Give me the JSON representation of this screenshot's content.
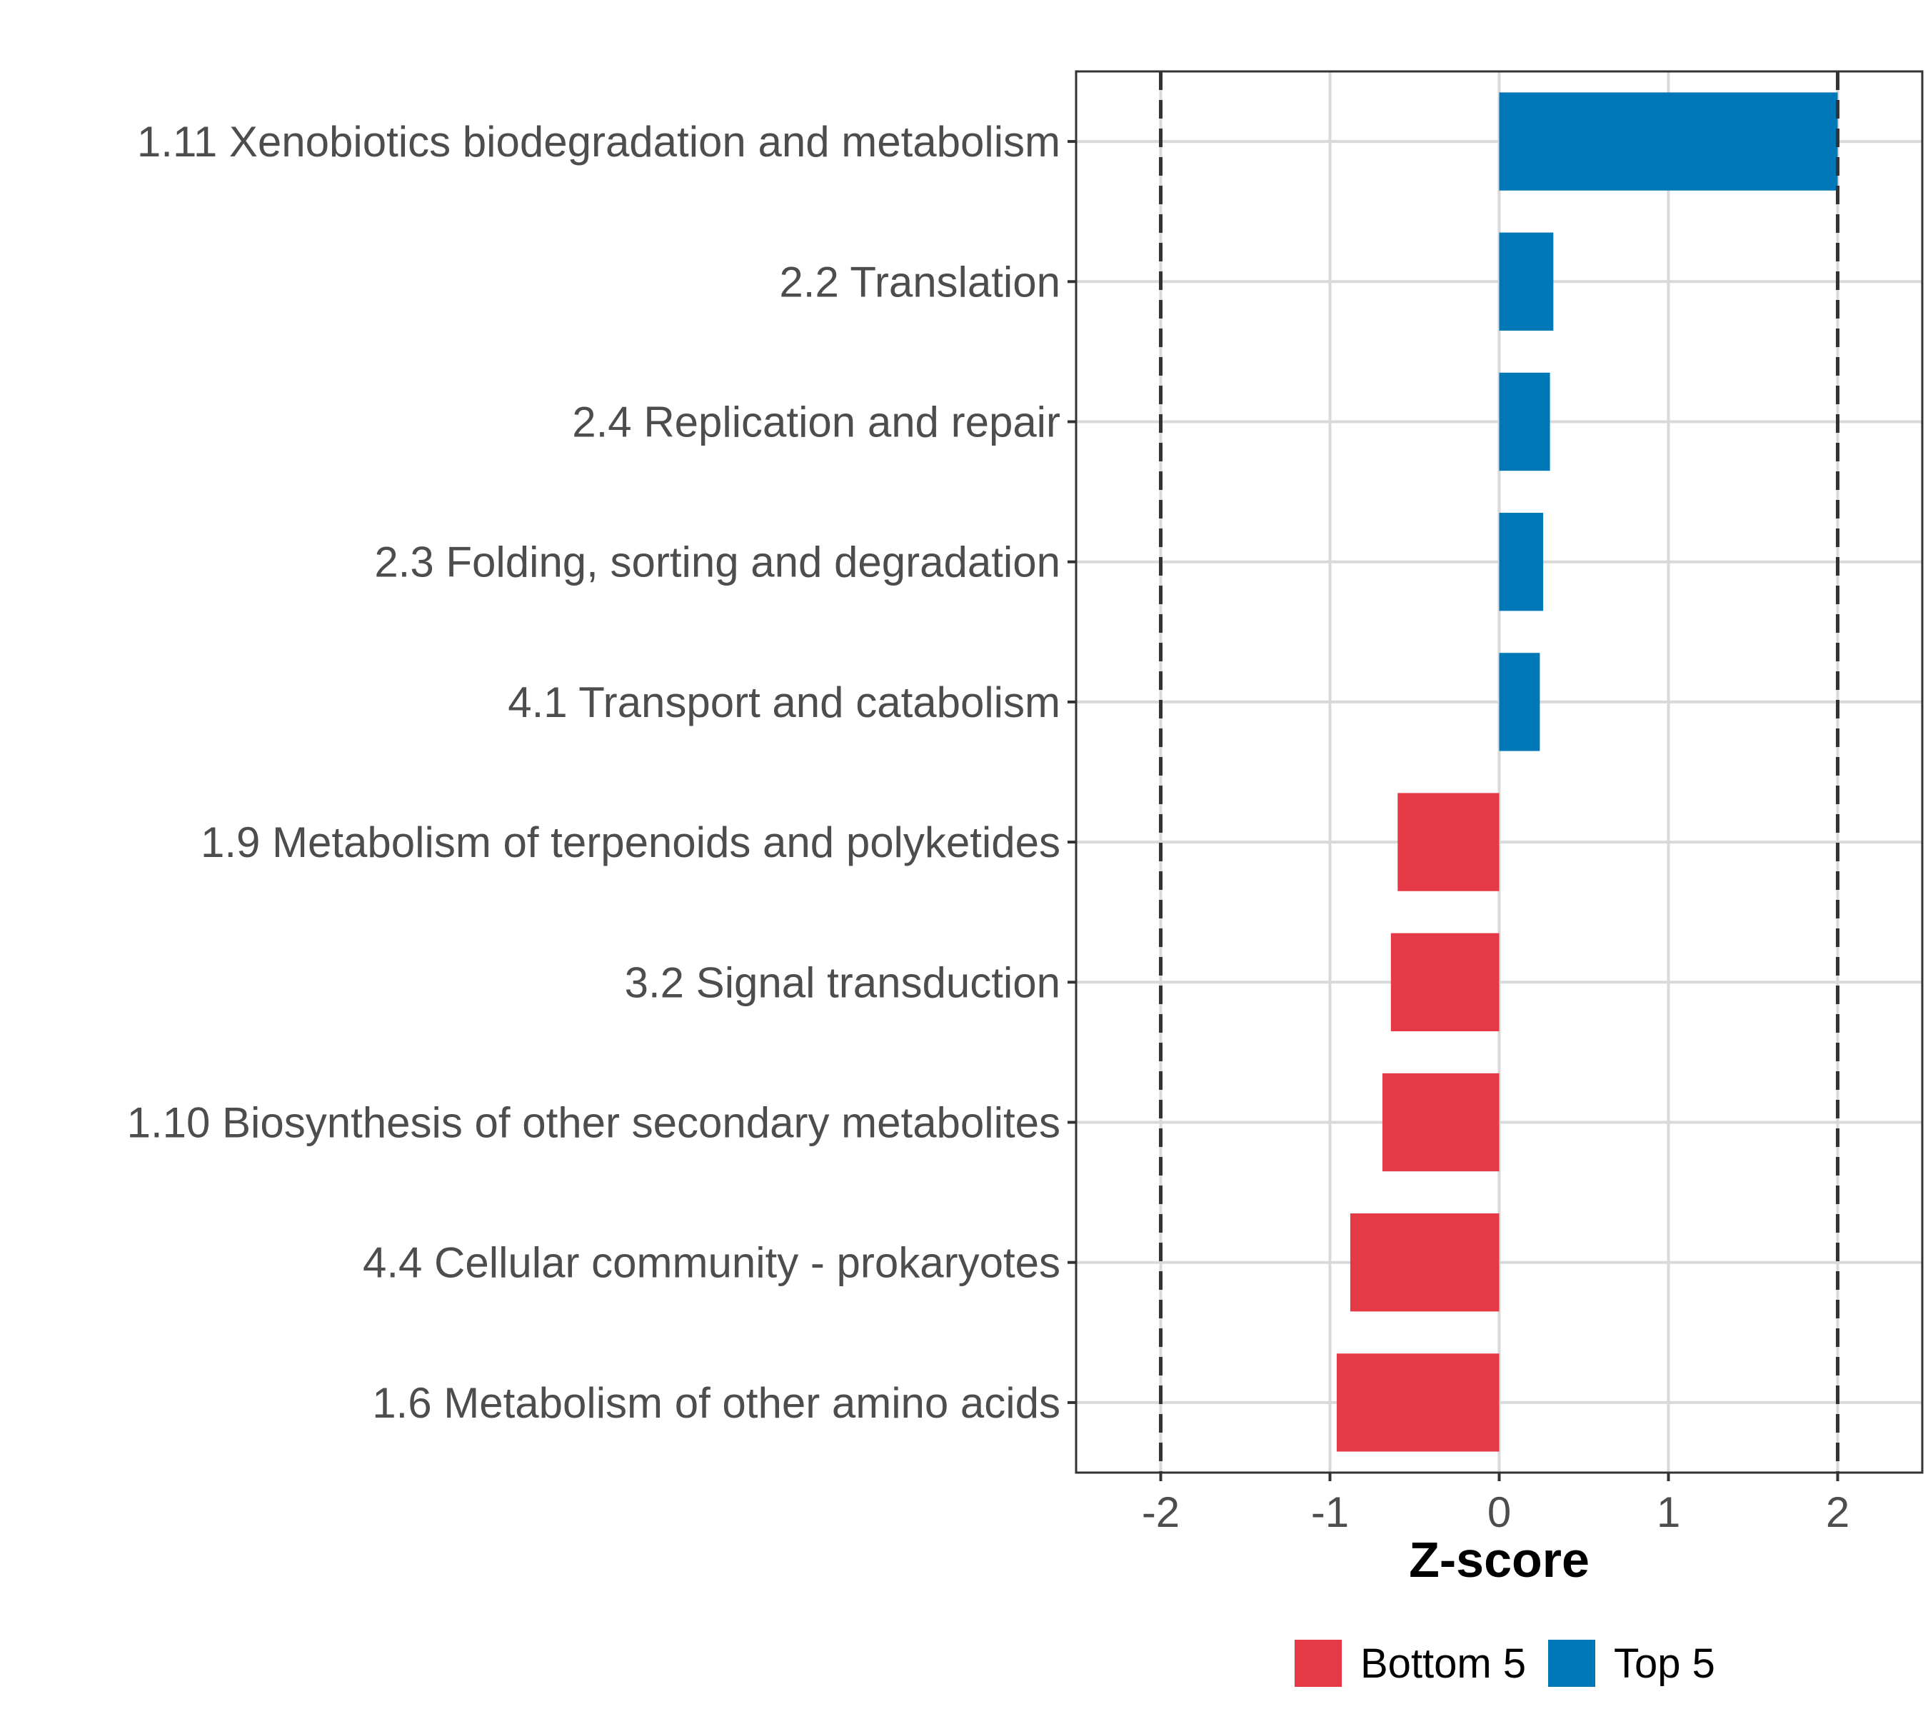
{
  "chart_data": {
    "type": "bar",
    "orientation": "horizontal",
    "categories": [
      "1.11 Xenobiotics biodegradation and metabolism",
      "2.2 Translation",
      "2.4 Replication and repair",
      "2.3 Folding, sorting and degradation",
      "4.1 Transport and catabolism",
      "1.9 Metabolism of terpenoids and polyketides",
      "3.2 Signal transduction",
      "1.10 Biosynthesis of other secondary metabolites",
      "4.4 Cellular community - prokaryotes",
      "1.6 Metabolism of other amino acids"
    ],
    "values": [
      2.0,
      0.32,
      0.3,
      0.26,
      0.24,
      -0.6,
      -0.64,
      -0.69,
      -0.88,
      -0.96
    ],
    "groups": [
      "Top 5",
      "Top 5",
      "Top 5",
      "Top 5",
      "Top 5",
      "Bottom 5",
      "Bottom 5",
      "Bottom 5",
      "Bottom 5",
      "Bottom 5"
    ],
    "xlabel": "Z-score",
    "ylabel": "",
    "xlim": [
      -2.5,
      2.5
    ],
    "xticks": [
      -2,
      -1,
      0,
      1,
      2
    ],
    "xtick_labels": [
      "-2",
      "-1",
      "0",
      "1",
      "2"
    ],
    "reference_lines": [
      -2,
      2
    ],
    "grid": true,
    "legend": {
      "position": "bottom",
      "items": [
        {
          "label": "Bottom 5",
          "color": "#E63946"
        },
        {
          "label": "Top 5",
          "color": "#0077B6"
        }
      ]
    },
    "colors": {
      "Bottom 5": "#E63946",
      "Top 5": "#0077B6"
    }
  }
}
